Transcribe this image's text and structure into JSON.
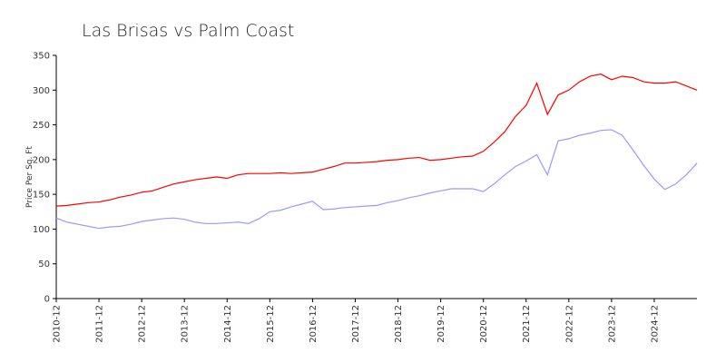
{
  "chart_data": {
    "type": "line",
    "title": "Las Brisas vs Palm Coast",
    "ylabel": "Price Per Sq. Ft",
    "categories": [
      "2010-12",
      null,
      null,
      null,
      "2011-12",
      null,
      null,
      null,
      "2012-12",
      null,
      null,
      null,
      "2013-12",
      null,
      null,
      null,
      "2014-12",
      null,
      null,
      null,
      "2015-12",
      null,
      null,
      null,
      "2016-12",
      null,
      null,
      null,
      "2017-12",
      null,
      null,
      null,
      "2018-12",
      null,
      null,
      null,
      "2019-12",
      null,
      null,
      null,
      "2020-12",
      null,
      null,
      null,
      "2021-12",
      null,
      null,
      null,
      "2022-12",
      null,
      null,
      null,
      "2023-12",
      null,
      null,
      null,
      "2024-12",
      null,
      null,
      null,
      null
    ],
    "series": [
      {
        "color": "#ff0000",
        "values": [
          133,
          134,
          136,
          138,
          139,
          142,
          146,
          149,
          153,
          155,
          160,
          165,
          168,
          171,
          173,
          175,
          173,
          178,
          180,
          180,
          180,
          181,
          180,
          181,
          182,
          186,
          190,
          195,
          195,
          196,
          197,
          199,
          200,
          202,
          203,
          199,
          200,
          202,
          204,
          205,
          212,
          225,
          240,
          262,
          278,
          310,
          265,
          293,
          300,
          312,
          320,
          323,
          315,
          320,
          318,
          312,
          310,
          310,
          312,
          306,
          300
        ]
      },
      {
        "color": "#9999ff",
        "values": [
          116,
          110,
          107,
          104,
          101,
          103,
          104,
          107,
          111,
          113,
          115,
          116,
          114,
          110,
          108,
          108,
          109,
          110,
          108,
          115,
          125,
          127,
          132,
          136,
          140,
          128,
          129,
          131,
          132,
          133,
          134,
          138,
          141,
          145,
          148,
          152,
          155,
          158,
          158,
          158,
          154,
          165,
          178,
          190,
          198,
          207,
          178,
          227,
          230,
          235,
          238,
          242,
          243,
          235,
          214,
          192,
          172,
          157,
          165,
          178,
          195
        ]
      }
    ],
    "ylim": [
      0,
      350
    ],
    "yticks": [
      0,
      50,
      100,
      150,
      200,
      250,
      300,
      350
    ],
    "grid": false
  }
}
